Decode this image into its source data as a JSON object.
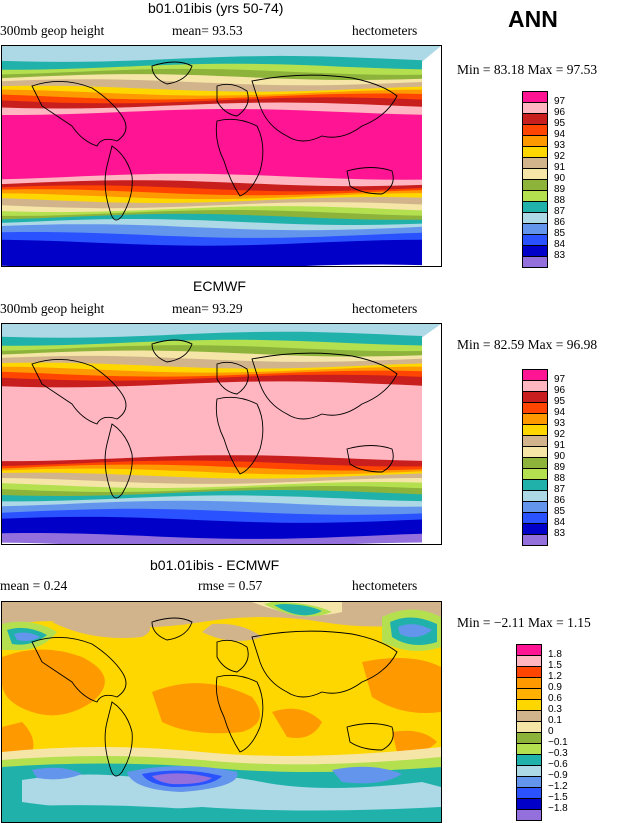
{
  "season": "ANN",
  "panels": [
    {
      "title": "b01.01ibis (yrs 50-74)",
      "left_label": "300mb geop height",
      "center_label": "mean=  93.53",
      "right_label": "hectometers",
      "min_max_text": "Min =  83.18 Max =  97.53",
      "legend_labels": [
        "97",
        "96",
        "95",
        "94",
        "93",
        "92",
        "91",
        "90",
        "89",
        "88",
        "87",
        "86",
        "85",
        "84",
        "83"
      ],
      "legend_colors": [
        "#ff1493",
        "#ffb6c1",
        "#c81e1e",
        "#ff4500",
        "#ff9900",
        "#ffd700",
        "#d2b48c",
        "#f5e6a8",
        "#8db33b",
        "#b4e050",
        "#20b2aa",
        "#add8e6",
        "#6495ed",
        "#2a52ff",
        "#0000c8",
        "#9370db"
      ],
      "bands": [
        {
          "color": "#add8e6",
          "w": 10
        },
        {
          "color": "#20b2aa",
          "w": 6
        },
        {
          "color": "#b4e050",
          "w": 4
        },
        {
          "color": "#8db33b",
          "w": 4
        },
        {
          "color": "#f5e6a8",
          "w": 4
        },
        {
          "color": "#d2b48c",
          "w": 5
        },
        {
          "color": "#ffd700",
          "w": 3
        },
        {
          "color": "#ff9900",
          "w": 3
        },
        {
          "color": "#ff4500",
          "w": 3
        },
        {
          "color": "#c81e1e",
          "w": 4
        },
        {
          "color": "#ffb6c1",
          "w": 5
        },
        {
          "color": "#ff1493",
          "w": 50
        },
        {
          "color": "#ffb6c1",
          "w": 5
        },
        {
          "color": "#c81e1e",
          "w": 4
        },
        {
          "color": "#ff4500",
          "w": 3
        },
        {
          "color": "#ff9900",
          "w": 3
        },
        {
          "color": "#ffd700",
          "w": 3
        },
        {
          "color": "#d2b48c",
          "w": 4
        },
        {
          "color": "#f5e6a8",
          "w": 3
        },
        {
          "color": "#b4e050",
          "w": 3
        },
        {
          "color": "#8db33b",
          "w": 3
        },
        {
          "color": "#20b2aa",
          "w": 4
        },
        {
          "color": "#add8e6",
          "w": 4
        },
        {
          "color": "#6495ed",
          "w": 6
        },
        {
          "color": "#2a52ff",
          "w": 6
        },
        {
          "color": "#0000c8",
          "w": 18
        }
      ]
    },
    {
      "title": "ECMWF",
      "left_label": "300mb geop height",
      "center_label": "mean=  93.29",
      "right_label": "hectometers",
      "min_max_text": "Min =  82.59 Max =  96.98",
      "legend_labels": [
        "97",
        "96",
        "95",
        "94",
        "93",
        "92",
        "91",
        "90",
        "89",
        "88",
        "87",
        "86",
        "85",
        "84",
        "83"
      ],
      "legend_colors": [
        "#ff1493",
        "#ffb6c1",
        "#c81e1e",
        "#ff4500",
        "#ff9900",
        "#ffd700",
        "#d2b48c",
        "#f5e6a8",
        "#8db33b",
        "#b4e050",
        "#20b2aa",
        "#add8e6",
        "#6495ed",
        "#2a52ff",
        "#0000c8",
        "#9370db"
      ],
      "bands": [
        {
          "color": "#add8e6",
          "w": 8
        },
        {
          "color": "#20b2aa",
          "w": 6
        },
        {
          "color": "#b4e050",
          "w": 4
        },
        {
          "color": "#8db33b",
          "w": 4
        },
        {
          "color": "#f5e6a8",
          "w": 4
        },
        {
          "color": "#d2b48c",
          "w": 5
        },
        {
          "color": "#ffd700",
          "w": 3
        },
        {
          "color": "#ff9900",
          "w": 3
        },
        {
          "color": "#ff4500",
          "w": 3
        },
        {
          "color": "#c81e1e",
          "w": 5
        },
        {
          "color": "#ffb6c1",
          "w": 55
        },
        {
          "color": "#c81e1e",
          "w": 4
        },
        {
          "color": "#ff4500",
          "w": 3
        },
        {
          "color": "#ff9900",
          "w": 3
        },
        {
          "color": "#ffd700",
          "w": 3
        },
        {
          "color": "#d2b48c",
          "w": 4
        },
        {
          "color": "#f5e6a8",
          "w": 3
        },
        {
          "color": "#b4e050",
          "w": 3
        },
        {
          "color": "#8db33b",
          "w": 3
        },
        {
          "color": "#20b2aa",
          "w": 4
        },
        {
          "color": "#add8e6",
          "w": 4
        },
        {
          "color": "#6495ed",
          "w": 6
        },
        {
          "color": "#2a52ff",
          "w": 6
        },
        {
          "color": "#0000c8",
          "w": 12
        },
        {
          "color": "#9370db",
          "w": 6
        }
      ]
    },
    {
      "title": "b01.01ibis - ECMWF",
      "left_label": "mean =    0.24",
      "center_label": "rmse =    0.57",
      "right_label": "hectometers",
      "min_max_text": "Min =  −2.11 Max =    1.15",
      "legend_labels": [
        "1.8",
        "1.5",
        "1.2",
        "0.9",
        "0.6",
        "0.3",
        "0.1",
        "0",
        "−0.1",
        "−0.3",
        "−0.6",
        "−0.9",
        "−1.2",
        "−1.5",
        "−1.8"
      ],
      "legend_colors": [
        "#ff1493",
        "#ffb6c1",
        "#ff4500",
        "#ff9900",
        "#ffb000",
        "#ffd700",
        "#d2b48c",
        "#f5e6a8",
        "#8db33b",
        "#b4e050",
        "#20b2aa",
        "#add8e6",
        "#6495ed",
        "#2a52ff",
        "#0000c8",
        "#9370db"
      ]
    }
  ]
}
